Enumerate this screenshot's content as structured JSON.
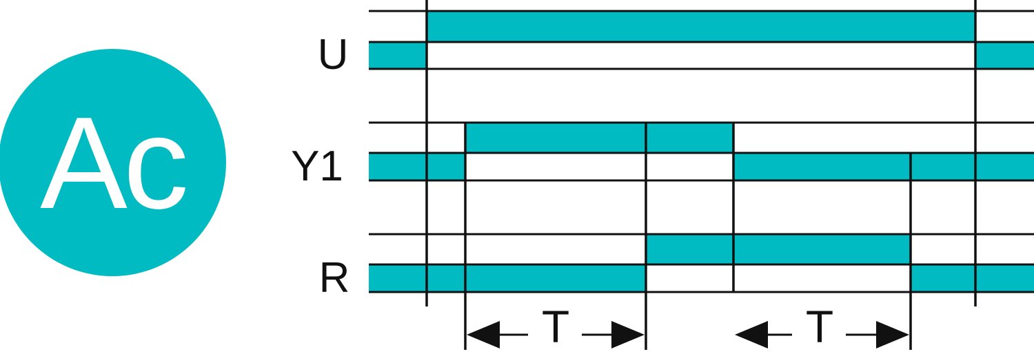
{
  "logo": {
    "text": "Ac",
    "color": "#00BBC2"
  },
  "colors": {
    "signal_fill": "#00BBC2",
    "line": "#111111"
  },
  "signals": [
    {
      "label": "U",
      "states": [
        "low",
        "high",
        "low"
      ]
    },
    {
      "label": "Y1",
      "states": [
        "low",
        "high",
        "low"
      ]
    },
    {
      "label": "R",
      "states": [
        "low",
        "high",
        "low"
      ]
    }
  ],
  "intervals": [
    {
      "label": "T"
    },
    {
      "label": "T"
    }
  ]
}
